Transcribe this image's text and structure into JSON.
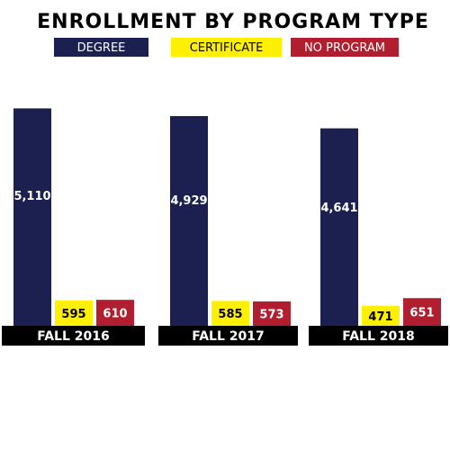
{
  "chart_data": {
    "type": "bar",
    "title": "ENROLLMENT BY PROGRAM TYPE",
    "categories": [
      "FALL 2016",
      "FALL 2017",
      "FALL 2018"
    ],
    "series": [
      {
        "name": "DEGREE",
        "color": "#1c2050",
        "values": [
          5110,
          4929,
          4641
        ],
        "labels": [
          "5,110",
          "4,929",
          "4,641"
        ],
        "label_color": "#ffffff"
      },
      {
        "name": "CERTIFICATE",
        "color": "#ffef00",
        "values": [
          595,
          585,
          471
        ],
        "labels": [
          "595",
          "585",
          "471"
        ],
        "label_color": "#000000"
      },
      {
        "name": "NO PROGRAM",
        "color": "#b11e2f",
        "values": [
          610,
          573,
          651
        ],
        "labels": [
          "610",
          "573",
          "651"
        ],
        "label_color": "#ffffff"
      }
    ],
    "ylim": [
      0,
      5500
    ],
    "grid": false,
    "legend_position": "top",
    "category_label_style": {
      "background": "#000000",
      "color": "#ffffff"
    }
  }
}
